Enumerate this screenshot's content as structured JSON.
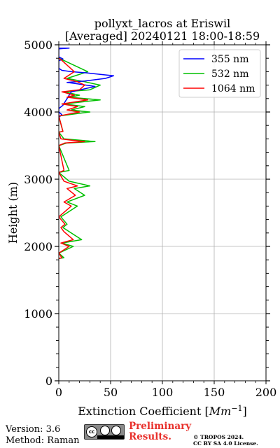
{
  "chart_data": {
    "type": "line",
    "title_line1": "pollyxt_lacros at Eriswil",
    "title_line2": "[Averaged] 20240121 18:00-18:59",
    "xlabel_main": "Extinction Coefficient [",
    "xlabel_unit": "Mm",
    "xlabel_exp": "−1",
    "xlabel_close": "]",
    "ylabel": "Height (m)",
    "xlim": [
      0,
      200
    ],
    "ylim": [
      0,
      5000
    ],
    "xticks": [
      0,
      50,
      100,
      150,
      200
    ],
    "yticks": [
      0,
      1000,
      2000,
      3000,
      4000,
      5000
    ],
    "grid": true,
    "legend_position": "top-right",
    "series": [
      {
        "name": "355 nm",
        "color": "#0000ff",
        "x": [
          0,
          10,
          0,
          0,
          3,
          0,
          0,
          4,
          12,
          35,
          18,
          8,
          25,
          35,
          45,
          53,
          40,
          28,
          12,
          3,
          0,
          0,
          4,
          0
        ],
        "y": [
          4950,
          4950,
          4940,
          3920,
          3960,
          4000,
          4050,
          4100,
          4300,
          4380,
          4420,
          4440,
          4460,
          4480,
          4500,
          4540,
          4560,
          4580,
          4600,
          4620,
          4650,
          4760,
          4790,
          4820
        ]
      },
      {
        "name": "532 nm",
        "color": "#00c000",
        "x": [
          0,
          5,
          0,
          14,
          3,
          22,
          10,
          4,
          8,
          2,
          18,
          8,
          25,
          15,
          30,
          10,
          0,
          10,
          0,
          8,
          35,
          20,
          5,
          0,
          4,
          0,
          30,
          12,
          25,
          5,
          40,
          10,
          20,
          5,
          30,
          40,
          25,
          8,
          28,
          3,
          0
        ],
        "y": [
          1820,
          1830,
          1900,
          2000,
          2050,
          2100,
          2220,
          2280,
          2330,
          2440,
          2600,
          2660,
          2760,
          2860,
          2900,
          2970,
          3100,
          3130,
          3500,
          3540,
          3560,
          3580,
          3600,
          3700,
          3710,
          3940,
          4000,
          4030,
          4080,
          4120,
          4180,
          4220,
          4250,
          4300,
          4330,
          4400,
          4450,
          4500,
          4600,
          4780,
          4800
        ]
      },
      {
        "name": "1064 nm",
        "color": "#ff0000",
        "x": [
          0,
          3,
          0,
          10,
          2,
          14,
          5,
          2,
          6,
          0,
          12,
          5,
          16,
          8,
          18,
          5,
          0,
          5,
          0,
          6,
          25,
          12,
          2,
          0,
          4,
          0,
          20,
          8,
          18,
          3,
          28,
          8,
          15,
          3,
          20,
          25,
          18,
          5,
          15,
          2,
          0
        ],
        "y": [
          1820,
          1830,
          1900,
          2000,
          2050,
          2100,
          2220,
          2280,
          2330,
          2440,
          2600,
          2660,
          2760,
          2860,
          2900,
          2970,
          3100,
          3130,
          3500,
          3540,
          3560,
          3580,
          3600,
          3700,
          3710,
          3940,
          4000,
          4030,
          4080,
          4120,
          4180,
          4220,
          4250,
          4300,
          4330,
          4400,
          4450,
          4500,
          4600,
          4780,
          4800
        ]
      }
    ]
  },
  "footer": {
    "version": "Version: 3.6",
    "method": "Method: Raman",
    "preliminary_line1": "Preliminary",
    "preliminary_line2": "Results.",
    "copyright_line1": "© TROPOS 2024.",
    "copyright_line2": "CC BY SA 4.0 License.",
    "license_badge": "cc-by-sa-icon"
  }
}
